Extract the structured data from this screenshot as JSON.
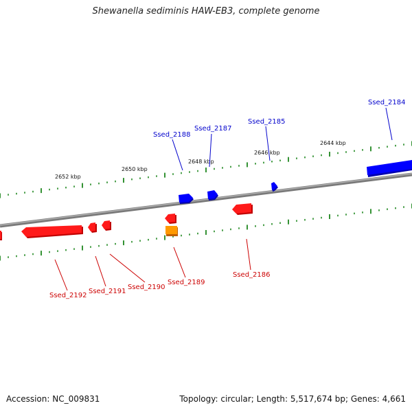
{
  "title": "Shewanella sediminis HAW-EB3, complete genome",
  "footer": {
    "accession": "Accession: NC_009831",
    "topology": "Topology: circular; Length: 5,517,674 bp; Genes: 4,661"
  },
  "colors": {
    "forward_gene": "#0000ff",
    "reverse_gene": "#ff0000",
    "rna_gene": "#ff8c00",
    "tick": "#007700",
    "backbone": "#888888"
  },
  "scale_labels": [
    "2652 kbp",
    "2650 kbp",
    "2648 kbp",
    "2646 kbp",
    "2644 kbp"
  ],
  "genes_forward": [
    "Ssed_2188",
    "Ssed_2187",
    "Ssed_2185",
    "Ssed_2184"
  ],
  "genes_reverse": [
    "Ssed_2192",
    "Ssed_2191",
    "Ssed_2190",
    "Ssed_2189",
    "Ssed_2186"
  ]
}
